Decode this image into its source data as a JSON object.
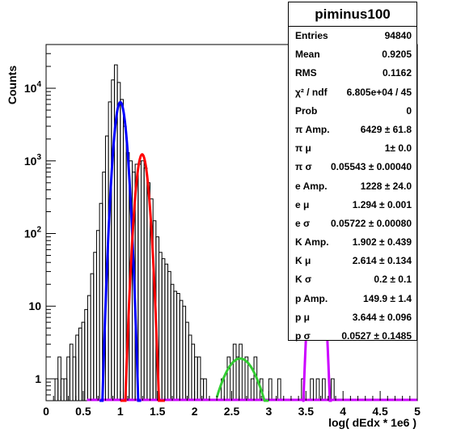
{
  "chart_data": {
    "type": "histogram",
    "title": "piminus100",
    "xlabel": "log( dEdx * 1e6 )",
    "ylabel": "Counts",
    "xlim": [
      0,
      5
    ],
    "ylim": [
      0.5,
      40000
    ],
    "yscale": "log",
    "x_ticks": [
      "0",
      "0.5",
      "1",
      "1.5",
      "2",
      "2.5",
      "3",
      "3.5",
      "4",
      "4.5",
      "5"
    ],
    "y_ticks": [
      {
        "value": 1,
        "base": "1",
        "exp": ""
      },
      {
        "value": 10,
        "base": "10",
        "exp": ""
      },
      {
        "value": 100,
        "base": "10",
        "exp": "2"
      },
      {
        "value": 1000,
        "base": "10",
        "exp": "3"
      },
      {
        "value": 10000,
        "base": "10",
        "exp": "4"
      }
    ],
    "histogram": {
      "bin_width": 0.04,
      "bins": [
        [
          0.12,
          1
        ],
        [
          0.16,
          2
        ],
        [
          0.2,
          1
        ],
        [
          0.24,
          1
        ],
        [
          0.28,
          2
        ],
        [
          0.32,
          3
        ],
        [
          0.36,
          2
        ],
        [
          0.4,
          4
        ],
        [
          0.44,
          5
        ],
        [
          0.48,
          6
        ],
        [
          0.52,
          9
        ],
        [
          0.56,
          14
        ],
        [
          0.6,
          28
        ],
        [
          0.64,
          55
        ],
        [
          0.68,
          110
        ],
        [
          0.72,
          260
        ],
        [
          0.76,
          700
        ],
        [
          0.8,
          2200
        ],
        [
          0.84,
          6500
        ],
        [
          0.88,
          13000
        ],
        [
          0.92,
          21000
        ],
        [
          0.96,
          12000
        ],
        [
          1.0,
          7000
        ],
        [
          1.04,
          3000
        ],
        [
          1.08,
          1300
        ],
        [
          1.12,
          1000
        ],
        [
          1.16,
          700
        ],
        [
          1.2,
          900
        ],
        [
          1.24,
          900
        ],
        [
          1.28,
          1000
        ],
        [
          1.32,
          800
        ],
        [
          1.36,
          500
        ],
        [
          1.4,
          300
        ],
        [
          1.44,
          150
        ],
        [
          1.48,
          90
        ],
        [
          1.52,
          55
        ],
        [
          1.56,
          45
        ],
        [
          1.6,
          38
        ],
        [
          1.64,
          30
        ],
        [
          1.68,
          20
        ],
        [
          1.72,
          16
        ],
        [
          1.76,
          15
        ],
        [
          1.8,
          12
        ],
        [
          1.84,
          10
        ],
        [
          1.88,
          6
        ],
        [
          1.92,
          4
        ],
        [
          1.96,
          3
        ],
        [
          2.0,
          2
        ],
        [
          2.04,
          2
        ],
        [
          2.08,
          1
        ],
        [
          2.12,
          1
        ],
        [
          2.36,
          1
        ],
        [
          2.44,
          2
        ],
        [
          2.52,
          3
        ],
        [
          2.56,
          2
        ],
        [
          2.6,
          3
        ],
        [
          2.68,
          2
        ],
        [
          2.76,
          1
        ],
        [
          2.8,
          2
        ],
        [
          2.88,
          1
        ],
        [
          3.0,
          1
        ],
        [
          3.12,
          1
        ],
        [
          3.44,
          1
        ],
        [
          3.56,
          1
        ],
        [
          3.64,
          1
        ],
        [
          3.72,
          1
        ],
        [
          3.84,
          1
        ]
      ]
    },
    "series": [
      {
        "name": "",
        "color": "#0000ff",
        "amp": 6429,
        "mu": 1.0,
        "sigma": 0.05543,
        "range": [
          0.72,
          1.28
        ]
      },
      {
        "name": "",
        "color": "#ff0000",
        "amp": 1228,
        "mu": 1.294,
        "sigma": 0.05722,
        "range": [
          1.0,
          1.6
        ]
      },
      {
        "name": "",
        "color": "#33cc33",
        "amp": 1.902,
        "mu": 2.614,
        "sigma": 0.2,
        "range": [
          2.3,
          3.0
        ]
      },
      {
        "name": "",
        "color": "#cc00ff",
        "amp": 149.9,
        "mu": 3.644,
        "sigma": 0.0527,
        "range": [
          3.45,
          3.85
        ]
      }
    ],
    "baseline_color": "#cc00ff",
    "grid": false,
    "legend": "top-right"
  },
  "stats": {
    "title": "piminus100",
    "rows": [
      {
        "k": "Entries",
        "v": "94840"
      },
      {
        "k": "Mean",
        "v": "0.9205"
      },
      {
        "k": "RMS",
        "v": "0.1162"
      },
      {
        "k": "χ² / ndf",
        "v": "6.805e+04 / 45"
      },
      {
        "k": "Prob",
        "v": "0"
      },
      {
        "k": "π Amp.",
        "v": "6429 ± 61.8"
      },
      {
        "k": "π μ",
        "v": "1± 0.0"
      },
      {
        "k": "π σ",
        "v": "0.05543 ± 0.00040"
      },
      {
        "k": "e Amp.",
        "v": "1228 ± 24.0"
      },
      {
        "k": "e μ",
        "v": "1.294 ± 0.001"
      },
      {
        "k": "e σ",
        "v": "0.05722 ± 0.00080"
      },
      {
        "k": "K Amp.",
        "v": "1.902 ± 0.439"
      },
      {
        "k": "K μ",
        "v": "2.614 ± 0.134"
      },
      {
        "k": "K σ",
        "v": "0.2 ± 0.1"
      },
      {
        "k": "p Amp.",
        "v": "149.9 ± 1.4"
      },
      {
        "k": "p μ",
        "v": "3.644 ± 0.096"
      },
      {
        "k": "p σ",
        "v": "0.0527 ± 0.1485"
      }
    ]
  }
}
